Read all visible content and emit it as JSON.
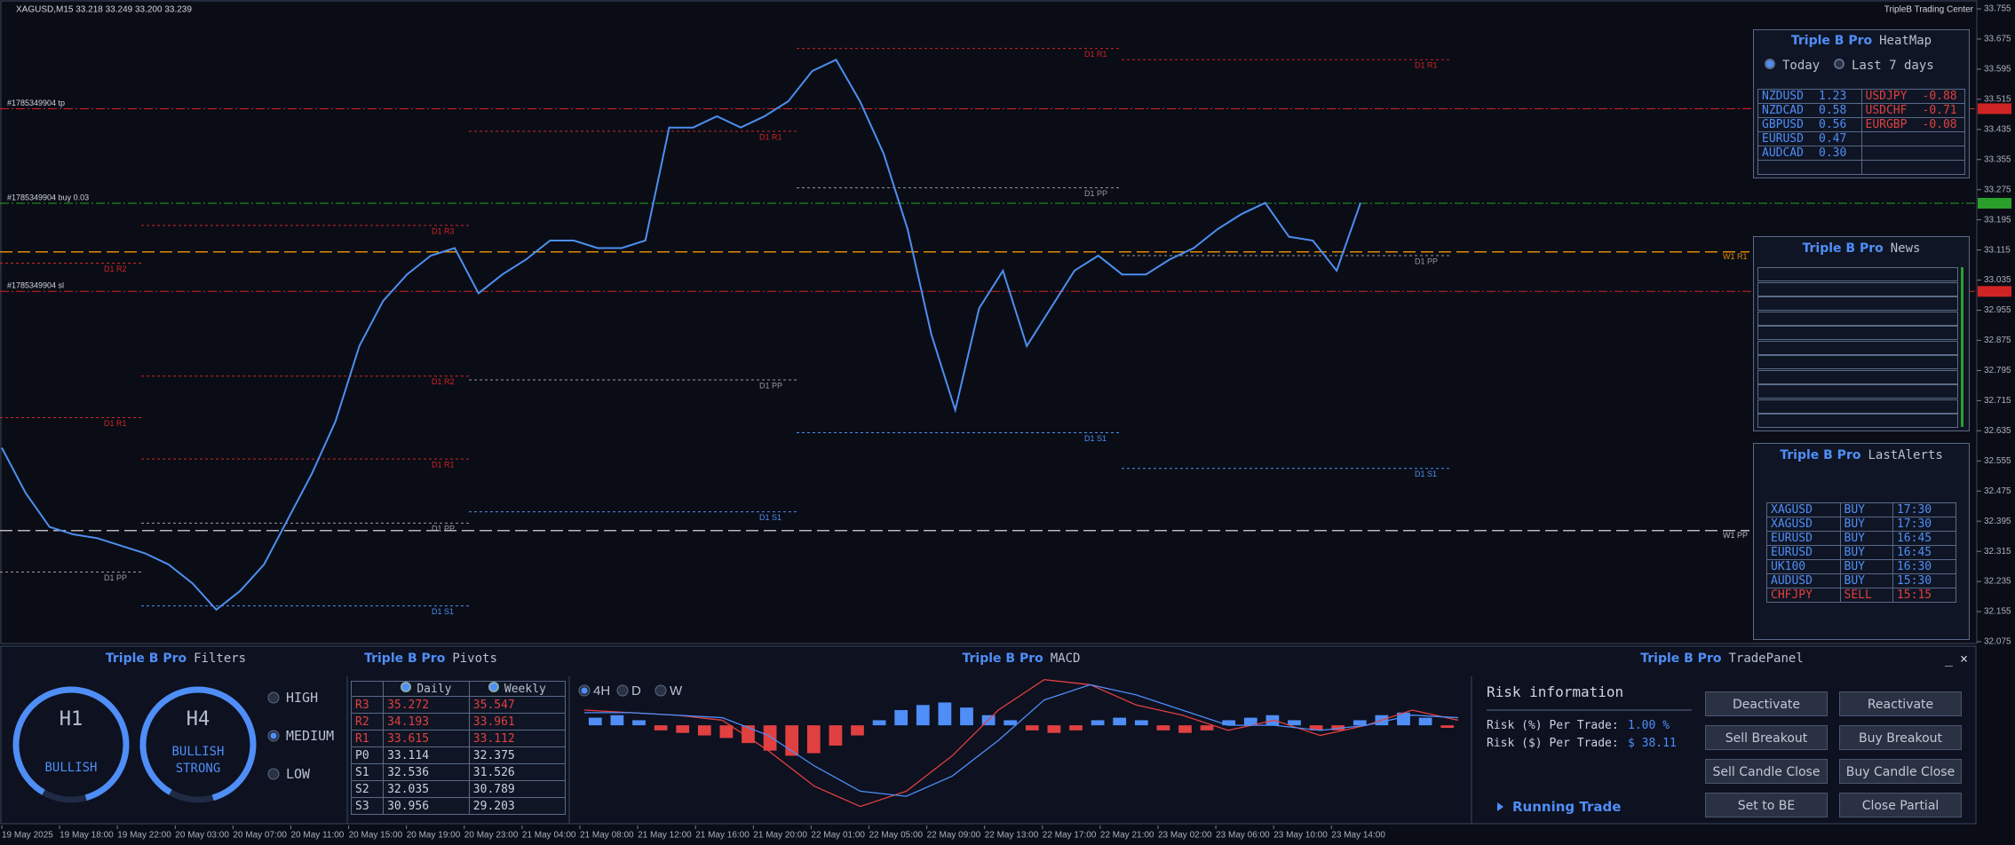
{
  "header": {
    "symbol_info": "XAGUSD,M15  33.218 33.249 33.200 33.239",
    "brand": "TripleB Trading Center"
  },
  "chart_data": {
    "type": "line",
    "color": "#4d8ff0",
    "values": [
      32.59,
      32.47,
      32.38,
      32.36,
      32.35,
      32.33,
      32.31,
      32.28,
      32.23,
      32.16,
      32.21,
      32.28,
      32.4,
      32.52,
      32.66,
      32.86,
      32.98,
      33.05,
      33.1,
      33.12,
      33.0,
      33.05,
      33.09,
      33.14,
      33.14,
      33.12,
      33.12,
      33.14,
      33.44,
      33.44,
      33.47,
      33.44,
      33.47,
      33.51,
      33.59,
      33.62,
      33.51,
      33.37,
      33.17,
      32.89,
      32.69,
      32.96,
      33.06,
      32.86,
      32.96,
      33.06,
      33.1,
      33.05,
      33.05,
      33.09,
      33.12,
      33.17,
      33.21,
      33.24,
      33.15,
      33.14,
      33.06,
      33.24
    ],
    "ylim": [
      32.075,
      33.755
    ],
    "yticks": [
      33.755,
      33.675,
      33.595,
      33.515,
      33.435,
      33.355,
      33.275,
      33.195,
      33.115,
      33.035,
      32.955,
      32.875,
      32.795,
      32.715,
      32.635,
      32.555,
      32.475,
      32.395,
      32.315,
      32.235,
      32.155,
      32.075
    ],
    "time_labels": [
      "19 May 2025",
      "19 May 18:00",
      "19 May 22:00",
      "20 May 03:00",
      "20 May 07:00",
      "20 May 11:00",
      "20 May 15:00",
      "20 May 19:00",
      "20 May 23:00",
      "21 May 04:00",
      "21 May 08:00",
      "21 May 12:00",
      "21 May 16:00",
      "21 May 20:00",
      "22 May 01:00",
      "22 May 05:00",
      "22 May 09:00",
      "22 May 13:00",
      "22 May 17:00",
      "22 May 21:00",
      "23 May 02:00",
      "23 May 06:00",
      "23 May 10:00",
      "23 May 14:00"
    ],
    "trade_lines": [
      {
        "label": "#1785349904 tp",
        "value": 33.49,
        "color": "#d02424"
      },
      {
        "label": "#1785349904 buy 0.03",
        "value": 33.239,
        "color": "#2aa02a"
      },
      {
        "label": "#1785349904 sl",
        "value": 33.005,
        "color": "#d02424"
      }
    ],
    "weekly_pivots": [
      {
        "label": "W1 R1",
        "value": 33.11,
        "color": "#e08a00"
      },
      {
        "label": "W1 PP",
        "value": 32.37,
        "color": "#b8b8b8"
      }
    ],
    "daily_pivots": [
      [
        {
          "label": "D1 R2",
          "value": 33.08,
          "color": "#d02424"
        },
        {
          "label": "D1 R1",
          "value": 32.67,
          "color": "#d02424"
        },
        {
          "label": "D1 PP",
          "value": 32.26,
          "color": "#9a9a9a"
        }
      ],
      [
        {
          "label": "D1 R3",
          "value": 33.18,
          "color": "#d02424"
        },
        {
          "label": "D1 R2",
          "value": 32.78,
          "color": "#d02424"
        },
        {
          "label": "D1 R1",
          "value": 32.56,
          "color": "#d02424"
        },
        {
          "label": "D1 PP",
          "value": 32.39,
          "color": "#9a9a9a"
        },
        {
          "label": "D1 S1",
          "value": 32.17,
          "color": "#4d8ff0"
        }
      ],
      [
        {
          "label": "D1 R1",
          "value": 33.43,
          "color": "#d02424"
        },
        {
          "label": "D1 PP",
          "value": 32.77,
          "color": "#9a9a9a"
        },
        {
          "label": "D1 S1",
          "value": 32.42,
          "color": "#4d8ff0"
        }
      ],
      [
        {
          "label": "D1 R1",
          "value": 33.65,
          "color": "#d02424"
        },
        {
          "label": "D1 PP",
          "value": 33.28,
          "color": "#9a9a9a"
        },
        {
          "label": "D1 S1",
          "value": 32.63,
          "color": "#4d8ff0"
        }
      ],
      [
        {
          "label": "D1 R1",
          "value": 33.62,
          "color": "#d02424"
        },
        {
          "label": "D1 PP",
          "value": 33.1,
          "color": "#9a9a9a"
        },
        {
          "label": "D1 S1",
          "value": 32.535,
          "color": "#4d8ff0"
        }
      ]
    ]
  },
  "heatmap": {
    "brand": "Triple B Pro",
    "title": "HeatMap",
    "tabs": [
      "Today",
      "Last 7 days"
    ],
    "selected_tab": 0,
    "positive_color": "#4f8ef7",
    "negative_color": "#e04040",
    "positive": [
      [
        "NZDUSD",
        "1.23"
      ],
      [
        "NZDCAD",
        "0.58"
      ],
      [
        "GBPUSD",
        "0.56"
      ],
      [
        "EURUSD",
        "0.47"
      ],
      [
        "AUDCAD",
        "0.30"
      ]
    ],
    "negative": [
      [
        "USDJPY",
        "-0.88"
      ],
      [
        "USDCHF",
        "-0.71"
      ],
      [
        "EURGBP",
        "-0.08"
      ]
    ]
  },
  "news": {
    "brand": "Triple B Pro",
    "title": "News"
  },
  "alerts": {
    "brand": "Triple B Pro",
    "title": "LastAlerts",
    "rows": [
      {
        "cells": [
          "XAGUSD",
          "BUY",
          "17:30"
        ],
        "color": "#4f8ef7"
      },
      {
        "cells": [
          "XAGUSD",
          "BUY",
          "17:30"
        ],
        "color": "#4f8ef7"
      },
      {
        "cells": [
          "EURUSD",
          "BUY",
          "16:45"
        ],
        "color": "#4f8ef7"
      },
      {
        "cells": [
          "EURUSD",
          "BUY",
          "16:45"
        ],
        "color": "#4f8ef7"
      },
      {
        "cells": [
          "UK100",
          "BUY",
          "16:30"
        ],
        "color": "#4f8ef7"
      },
      {
        "cells": [
          "AUDUSD",
          "BUY",
          "15:30"
        ],
        "color": "#4f8ef7"
      },
      {
        "cells": [
          "CHFJPY",
          "SELL",
          "15:15"
        ],
        "color": "#e04040"
      }
    ]
  },
  "filters": {
    "brand": "Triple B Pro",
    "title": "Filters",
    "gauges": [
      {
        "tf": "H1",
        "state": "BULLISH"
      },
      {
        "tf": "H4",
        "state": "BULLISH STRONG"
      }
    ],
    "levels": [
      "HIGH",
      "MEDIUM",
      "LOW"
    ],
    "selected_level": 1
  },
  "pivots": {
    "brand": "Triple B Pro",
    "title": "Pivots",
    "columns": [
      "Daily",
      "Weekly"
    ],
    "rows": [
      {
        "cells": [
          "R3",
          "35.272",
          "35.547"
        ],
        "color": "#e04040"
      },
      {
        "cells": [
          "R2",
          "34.193",
          "33.961"
        ],
        "color": "#e04040"
      },
      {
        "cells": [
          "R1",
          "33.615",
          "33.112"
        ],
        "color": "#e04040"
      },
      {
        "cells": [
          "P0",
          "33.114",
          "32.375"
        ],
        "color": "#c8d0e0"
      },
      {
        "cells": [
          "S1",
          "32.536",
          "31.526"
        ],
        "color": "#c8d0e0"
      },
      {
        "cells": [
          "S2",
          "32.035",
          "30.789"
        ],
        "color": "#c8d0e0"
      },
      {
        "cells": [
          "S3",
          "30.956",
          "29.203"
        ],
        "color": "#c8d0e0"
      }
    ]
  },
  "macd": {
    "brand": "Triple B Pro",
    "title": "MACD",
    "timeframes": [
      "4H",
      "D",
      "W"
    ],
    "selected_timeframe": 0,
    "ylim": [
      -1.8,
      1.0
    ],
    "positive_color": "#4f8ef7",
    "negative_color": "#e04040",
    "macd_color": "#e04040",
    "signal_color": "#4f8ef7",
    "histogram": [
      0.15,
      0.2,
      0.1,
      -0.1,
      -0.15,
      -0.2,
      -0.25,
      -0.35,
      -0.5,
      -0.6,
      -0.55,
      -0.4,
      -0.2,
      0.1,
      0.3,
      0.4,
      0.45,
      0.35,
      0.2,
      0.1,
      -0.1,
      -0.15,
      -0.1,
      0.1,
      0.15,
      0.1,
      -0.1,
      -0.15,
      -0.1,
      0.1,
      0.15,
      0.2,
      0.1,
      -0.1,
      -0.1,
      0.1,
      0.2,
      0.25,
      0.15,
      -0.05
    ],
    "macd_line": [
      0.3,
      0.25,
      0.2,
      0.1,
      -0.5,
      -1.2,
      -1.6,
      -1.3,
      -0.6,
      0.3,
      0.9,
      0.8,
      0.4,
      0.2,
      -0.1,
      0.1,
      -0.2,
      0.0,
      0.3,
      0.1
    ],
    "signal_line": [
      0.25,
      0.25,
      0.2,
      0.15,
      -0.2,
      -0.8,
      -1.3,
      -1.4,
      -1.0,
      -0.3,
      0.5,
      0.8,
      0.6,
      0.3,
      0.0,
      0.0,
      -0.1,
      0.0,
      0.2,
      0.15
    ]
  },
  "trade_panel": {
    "brand": "Triple B Pro",
    "title": "TradePanel",
    "window_controls": [
      "_",
      "×"
    ],
    "risk_title": "Risk information",
    "risk_rows": [
      [
        "Risk (%) Per Trade:",
        "1.00 %"
      ],
      [
        "Risk ($) Per Trade:",
        "$ 38.11"
      ]
    ],
    "running": "Running Trade",
    "buttons": [
      "Deactivate",
      "Reactivate",
      "Sell Breakout",
      "Buy Breakout",
      "Sell Candle Close",
      "Buy Candle Close",
      "Set to BE",
      "Close Partial"
    ]
  }
}
